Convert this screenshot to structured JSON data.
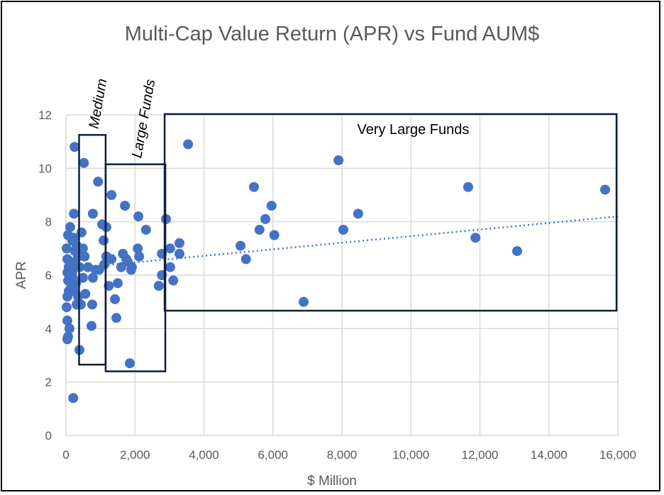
{
  "chart_data": {
    "type": "scatter",
    "title": "Multi-Cap Value Return (APR) vs Fund AUM$",
    "xlabel": "$ Million",
    "ylabel": "APR",
    "xlim": [
      0,
      16000
    ],
    "ylim": [
      0,
      12
    ],
    "x_ticks": [
      "0",
      "2,000",
      "4,000",
      "6,000",
      "8,000",
      "10,000",
      "12,000",
      "14,000",
      "16,000"
    ],
    "y_ticks": [
      "0",
      "2",
      "4",
      "6",
      "8",
      "10",
      "12"
    ],
    "grid": true,
    "marker_color": "#4472C4",
    "trendline": {
      "type": "linear",
      "intercept": 6.23,
      "slope": 0.000123,
      "style": "dotted"
    },
    "points": [
      [
        250,
        10.8
      ],
      [
        520,
        10.2
      ],
      [
        930,
        9.5
      ],
      [
        1320,
        9.0
      ],
      [
        1710,
        8.6
      ],
      [
        230,
        8.3
      ],
      [
        780,
        8.3
      ],
      [
        2100,
        8.2
      ],
      [
        2900,
        8.1
      ],
      [
        3540,
        10.9
      ],
      [
        5450,
        9.3
      ],
      [
        5960,
        8.6
      ],
      [
        5780,
        8.1
      ],
      [
        8470,
        8.3
      ],
      [
        7900,
        10.3
      ],
      [
        11660,
        9.3
      ],
      [
        15630,
        9.2
      ],
      [
        8040,
        7.7
      ],
      [
        5610,
        7.7
      ],
      [
        6040,
        7.5
      ],
      [
        11870,
        7.4
      ],
      [
        13080,
        6.9
      ],
      [
        5060,
        7.1
      ],
      [
        5220,
        6.6
      ],
      [
        6890,
        5.0
      ],
      [
        3290,
        7.2
      ],
      [
        3020,
        7.0
      ],
      [
        3290,
        6.8
      ],
      [
        3020,
        6.3
      ],
      [
        3110,
        5.8
      ],
      [
        2690,
        5.6
      ],
      [
        2780,
        6.0
      ],
      [
        2780,
        6.8
      ],
      [
        2320,
        7.7
      ],
      [
        2080,
        7.0
      ],
      [
        2120,
        6.7
      ],
      [
        1850,
        2.7
      ],
      [
        760,
        4.9
      ],
      [
        1420,
        5.1
      ],
      [
        1460,
        4.4
      ],
      [
        1500,
        5.7
      ],
      [
        1240,
        5.6
      ],
      [
        740,
        4.1
      ],
      [
        390,
        3.2
      ],
      [
        210,
        1.4
      ],
      [
        40,
        3.6
      ],
      [
        60,
        3.7
      ],
      [
        100,
        4.0
      ],
      [
        40,
        4.3
      ],
      [
        20,
        4.8
      ],
      [
        40,
        5.2
      ],
      [
        80,
        5.4
      ],
      [
        60,
        5.8
      ],
      [
        40,
        6.1
      ],
      [
        80,
        6.3
      ],
      [
        40,
        6.6
      ],
      [
        20,
        7.0
      ],
      [
        60,
        7.5
      ],
      [
        120,
        7.8
      ],
      [
        230,
        7.4
      ],
      [
        310,
        7.1
      ],
      [
        350,
        6.7
      ],
      [
        270,
        6.4
      ],
      [
        180,
        6.1
      ],
      [
        290,
        5.7
      ],
      [
        230,
        5.4
      ],
      [
        350,
        5.2
      ],
      [
        310,
        4.9
      ],
      [
        430,
        4.9
      ],
      [
        490,
        5.9
      ],
      [
        390,
        6.3
      ],
      [
        540,
        6.7
      ],
      [
        450,
        7.6
      ],
      [
        490,
        7.0
      ],
      [
        560,
        5.3
      ],
      [
        640,
        6.3
      ],
      [
        780,
        5.9
      ],
      [
        860,
        6.2
      ],
      [
        1090,
        7.3
      ],
      [
        1050,
        7.9
      ],
      [
        1170,
        7.8
      ],
      [
        1170,
        6.7
      ],
      [
        960,
        6.2
      ],
      [
        1110,
        6.4
      ],
      [
        1320,
        6.6
      ],
      [
        1650,
        6.8
      ],
      [
        1790,
        6.5
      ],
      [
        1910,
        6.3
      ],
      [
        1890,
        6.2
      ],
      [
        1600,
        6.3
      ],
      [
        1750,
        6.6
      ],
      [
        160,
        5.8
      ],
      [
        140,
        5.5
      ],
      [
        100,
        6.0
      ],
      [
        150,
        6.2
      ],
      [
        200,
        5.9
      ],
      [
        120,
        6.5
      ],
      [
        260,
        6.9
      ],
      [
        180,
        7.3
      ]
    ],
    "annotations": [
      {
        "label": "Medium",
        "x_range": [
          380,
          1150
        ],
        "y_range": [
          2.65,
          11.25
        ],
        "label_orientation": "vertical"
      },
      {
        "label": "Large Funds",
        "x_range": [
          1150,
          2880
        ],
        "y_range": [
          2.4,
          10.15
        ],
        "label_orientation": "vertical"
      },
      {
        "label": "Very Large Funds",
        "x_range": [
          2860,
          15960
        ],
        "y_range": [
          4.67,
          12.03
        ],
        "label_orientation": "horizontal"
      }
    ]
  }
}
